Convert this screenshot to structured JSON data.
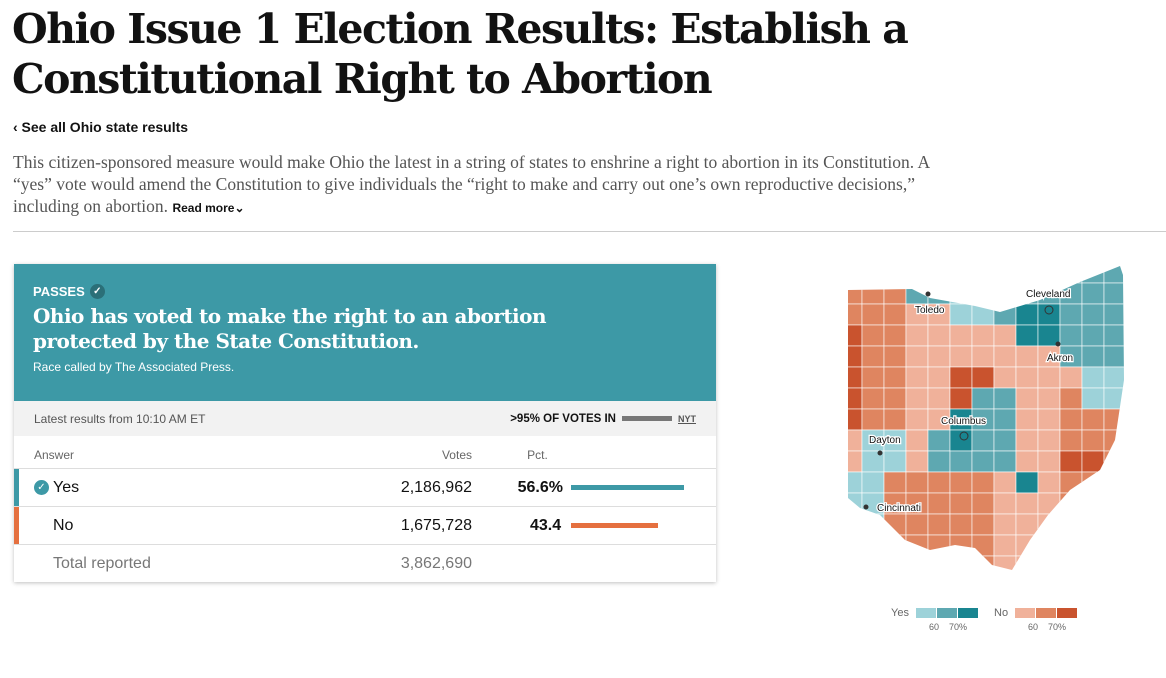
{
  "title": "Ohio Issue 1 Election Results: Establish a Constitutional Right to Abortion",
  "back_link": "‹ See all Ohio state results",
  "description": "This citizen-sponsored measure would make Ohio the latest in a string of states to enshrine a right to abortion in its Constitution. A “yes” vote would amend the Constitution to give individuals the “right to make and carry out one’s own reproductive decisions,” including on abortion.",
  "read_more": "Read more⌄",
  "card": {
    "status_label": "PASSES",
    "headline": "Ohio has voted to make the right to an abortion protected by the State Constitution.",
    "called": "Race called by The Associated Press.",
    "latest": "Latest results from 10:10 AM ET",
    "votes_in": ">95% OF VOTES IN",
    "source": "NYT",
    "headers": {
      "answer": "Answer",
      "votes": "Votes",
      "pct": "Pct."
    },
    "rows": [
      {
        "answer": "Yes",
        "votes": "2,186,962",
        "pct": "56.6%",
        "value": 56.6,
        "color": "#3d99a6"
      },
      {
        "answer": "No",
        "votes": "1,675,728",
        "pct": "43.4",
        "value": 43.4,
        "color": "#e5703f"
      }
    ],
    "total_label": "Total reported",
    "total_votes": "3,862,690"
  },
  "map": {
    "cities": [
      "Toledo",
      "Cleveland",
      "Akron",
      "Columbus",
      "Dayton",
      "Cincinnati"
    ],
    "legend": {
      "yes": "Yes",
      "no": "No",
      "t1": "60",
      "t2": "70%",
      "yes_colors": [
        "#9dd2d9",
        "#5ea8b1",
        "#198590"
      ],
      "no_colors": [
        "#f0b19a",
        "#df8560",
        "#c9532e"
      ]
    }
  }
}
